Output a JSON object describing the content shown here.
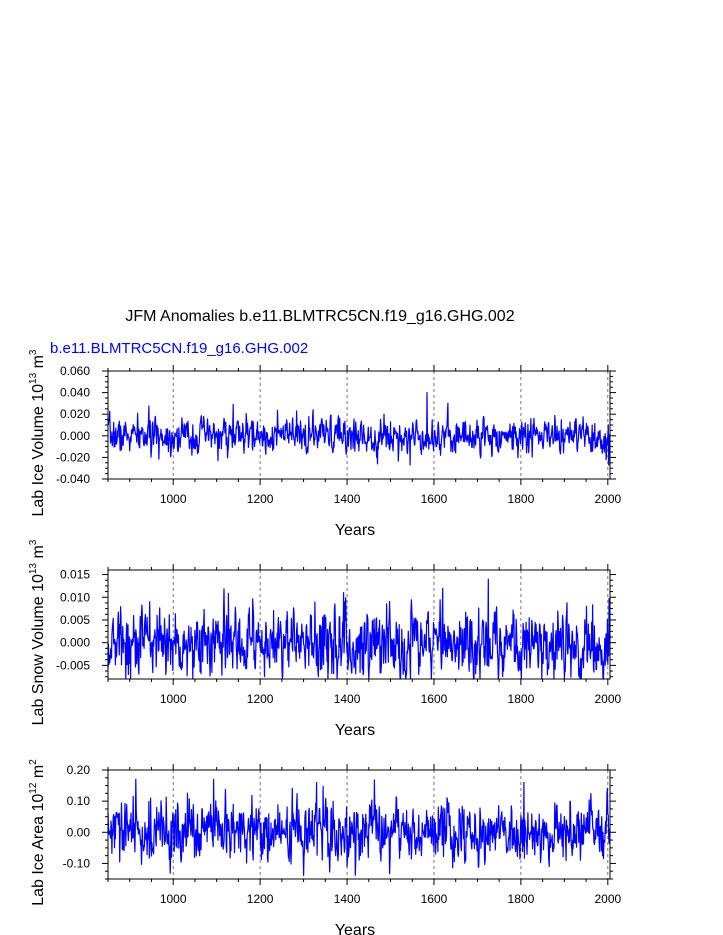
{
  "figure": {
    "title": "JFM Anomalies b.e11.BLMTRC5CN.f19_g16.GHG.002"
  },
  "chart_data": [
    {
      "type": "line",
      "subtitle": "b.e11.BLMTRC5CN.f19_g16.GHG.002",
      "xlabel": "Years",
      "ylabel": {
        "text": "Lab Ice Volume 10",
        "exp": "13",
        "unit": " m",
        "unit_exp": "3"
      },
      "xlim": [
        850,
        2005
      ],
      "ylim": [
        -0.04,
        0.06
      ],
      "xticks": [
        1000,
        1200,
        1400,
        1600,
        1800,
        2000
      ],
      "yticks": [
        -0.04,
        -0.02,
        0.0,
        0.02,
        0.04,
        0.06
      ],
      "ytick_labels": [
        "-0.040",
        "-0.020",
        "0.000",
        "0.020",
        "0.040",
        "0.060"
      ],
      "series": [
        {
          "color": "#0000ff",
          "std": 0.0075,
          "trend_end": -0.012,
          "seed": 7,
          "peaks": [
            [
              1584,
              0.04
            ],
            [
              1545,
              -0.027
            ],
            [
              1138,
              0.029
            ],
            [
              1470,
              -0.026
            ],
            [
              2002,
              -0.027
            ]
          ]
        }
      ],
      "grid": "vertical dashed at century ticks"
    },
    {
      "type": "line",
      "subtitle": "",
      "xlabel": "Years",
      "ylabel": {
        "text": "Lab Snow Volume 10",
        "exp": "13",
        "unit": " m",
        "unit_exp": "3"
      },
      "xlim": [
        850,
        2005
      ],
      "ylim": [
        -0.008,
        0.016
      ],
      "xticks": [
        1000,
        1200,
        1400,
        1600,
        1800,
        2000
      ],
      "yticks": [
        -0.005,
        0.0,
        0.005,
        0.01,
        0.015
      ],
      "ytick_labels": [
        "-0.005",
        "0.000",
        "0.005",
        "0.010",
        "0.015"
      ],
      "series": [
        {
          "color": "#0000ff",
          "std": 0.0035,
          "trend_end": -0.002,
          "seed": 13,
          "peaks": [
            [
              1725,
              0.014
            ],
            [
              1620,
              0.012
            ],
            [
              1392,
              0.011
            ],
            [
              1848,
              -0.008
            ],
            [
              1990,
              -0.008
            ]
          ]
        }
      ],
      "grid": "vertical dashed at century ticks"
    },
    {
      "type": "line",
      "subtitle": "",
      "xlabel": "Years",
      "ylabel": {
        "text": "Lab Ice Area 10",
        "exp": "12",
        "unit": " m",
        "unit_exp": "2"
      },
      "xlim": [
        850,
        2005
      ],
      "ylim": [
        -0.15,
        0.2
      ],
      "xticks": [
        1000,
        1200,
        1400,
        1600,
        1800,
        2000
      ],
      "yticks": [
        -0.1,
        0.0,
        0.1,
        0.2
      ],
      "ytick_labels": [
        "-0.10",
        "0.00",
        "0.10",
        "0.20"
      ],
      "series": [
        {
          "color": "#0000ff",
          "std": 0.045,
          "trend_end": 0.0,
          "seed": 29,
          "peaks": [
            [
              914,
              0.17
            ],
            [
              1093,
              0.17
            ],
            [
              1330,
              0.16
            ],
            [
              1807,
              0.16
            ],
            [
              1400,
              -0.11
            ]
          ]
        }
      ],
      "grid": "vertical dashed at century ticks"
    }
  ]
}
